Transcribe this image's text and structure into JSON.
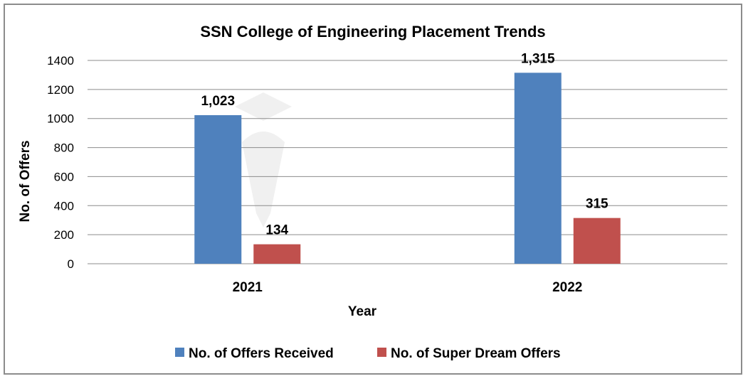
{
  "chart_data": {
    "type": "bar",
    "title": "SSN College of Engineering Placement Trends",
    "xlabel": "Year",
    "ylabel": "No. of Offers",
    "categories": [
      "2021",
      "2022"
    ],
    "series": [
      {
        "name": "No. of Offers Received",
        "values": [
          1023,
          1315
        ],
        "labels": [
          "1,023",
          "1,315"
        ],
        "color": "#4f81bd"
      },
      {
        "name": "No. of Super Dream Offers",
        "values": [
          134,
          315
        ],
        "labels": [
          "134",
          "315"
        ],
        "color": "#c0504d"
      }
    ],
    "ylim": [
      0,
      1400
    ],
    "yticks": [
      0,
      200,
      400,
      600,
      800,
      1000,
      1200,
      1400
    ],
    "grid": true,
    "legend": "bottom"
  },
  "watermark": "shiksha"
}
